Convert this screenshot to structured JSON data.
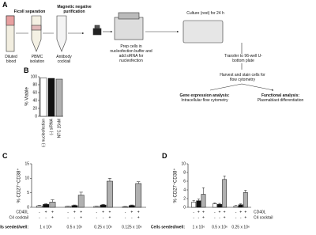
{
  "figure": {
    "panel_labels": [
      "A",
      "B",
      "C",
      "D"
    ],
    "steps": {
      "ficoll": "Ficoll separation",
      "magnetic": "Magnetic negative purification",
      "diluted": "Diluted blood",
      "pbmc": "PBMC isolation",
      "antibody": "Antibody cocktail",
      "prep": "Prep cells in nucleofection buffer and add siRNA for nucleofection",
      "culture": "Culture (rest) for 24 h",
      "transfer": "Transfer to 96-well U-bottom plate",
      "harvest": "Harvest and stain cells for flow cytometry",
      "gene_title": "Gene expression analysis:",
      "gene_text": "Intracellular flow cytometry",
      "func_title": "Functional analysis:",
      "func_text": "Plasmablast differentiation"
    }
  },
  "chart_data": [
    {
      "type": "bar",
      "ylabel": "% Viable",
      "categories": [
        "(-) nucleofection",
        "(-) siRNA",
        "NTC 15nM"
      ],
      "values": [
        97,
        96,
        94
      ],
      "colors": [
        "#ffffff",
        "#111111",
        "#b0b0b0"
      ],
      "ylim": [
        0,
        100
      ],
      "yticks": [
        0,
        20,
        40,
        60,
        80,
        100
      ]
    },
    {
      "type": "grouped_bar",
      "ylabel": "% CD27⁺CD38⁺",
      "x_label": "Cells seeded/well:",
      "categories": [
        "1 x 10⁶",
        "0.5 x 10⁶",
        "0.25 x 10⁶",
        "0.125 x 10⁶"
      ],
      "series": [
        {
          "color": "#ffffff",
          "values": [
            0.5,
            0.3,
            0.3,
            0.2
          ],
          "errors": [
            0.2,
            0.1,
            0.1,
            0.1
          ]
        },
        {
          "color": "#111111",
          "values": [
            1.0,
            0.6,
            0.8,
            0.6
          ],
          "errors": [
            0.3,
            0.2,
            0.2,
            0.2
          ]
        },
        {
          "color": "#b0b0b0",
          "values": [
            1.8,
            4.2,
            9.0,
            8.2
          ],
          "errors": [
            0.8,
            1.0,
            1.0,
            0.6
          ]
        }
      ],
      "sign_rows": [
        {
          "label": "CD40L",
          "signs": [
            "-",
            "+",
            "+",
            "-",
            "+",
            "+",
            "-",
            "+",
            "+",
            "-",
            "+",
            "+"
          ]
        },
        {
          "label": "C4 cocktail",
          "signs": [
            "-",
            "-",
            "+",
            "-",
            "-",
            "+",
            "-",
            "-",
            "+",
            "-",
            "-",
            "+"
          ]
        }
      ],
      "sign_label_side": "left",
      "ylim": [
        0,
        15
      ],
      "yticks": [
        0,
        5,
        10,
        15
      ]
    },
    {
      "type": "grouped_bar",
      "ylabel": "% CD27⁺CD38⁺",
      "x_label": "Cells seeded/well:",
      "categories": [
        "1 x 10⁶",
        "0.5 x 10⁶",
        "0.25 x 10⁶"
      ],
      "series": [
        {
          "color": "#ffffff",
          "values": [
            1.2,
            0.8,
            0.3
          ],
          "errors": [
            0.3,
            0.2,
            0.1
          ]
        },
        {
          "color": "#111111",
          "values": [
            1.5,
            0.7,
            0.6
          ],
          "errors": [
            0.4,
            0.2,
            0.2
          ]
        },
        {
          "color": "#b0b0b0",
          "values": [
            3.0,
            6.4,
            3.4
          ],
          "errors": [
            1.5,
            0.8,
            0.5
          ]
        }
      ],
      "sign_rows": [
        {
          "label": "CD40L",
          "signs": [
            "-",
            "+",
            "+",
            "-",
            "+",
            "+",
            "-",
            "+",
            "+"
          ]
        },
        {
          "label": "C4 cocktail",
          "signs": [
            "-",
            "-",
            "+",
            "-",
            "-",
            "+",
            "-",
            "-",
            "+"
          ]
        }
      ],
      "sign_label_side": "right",
      "ylim": [
        0,
        10
      ],
      "yticks": [
        0,
        2,
        4,
        6,
        8,
        10
      ]
    }
  ]
}
